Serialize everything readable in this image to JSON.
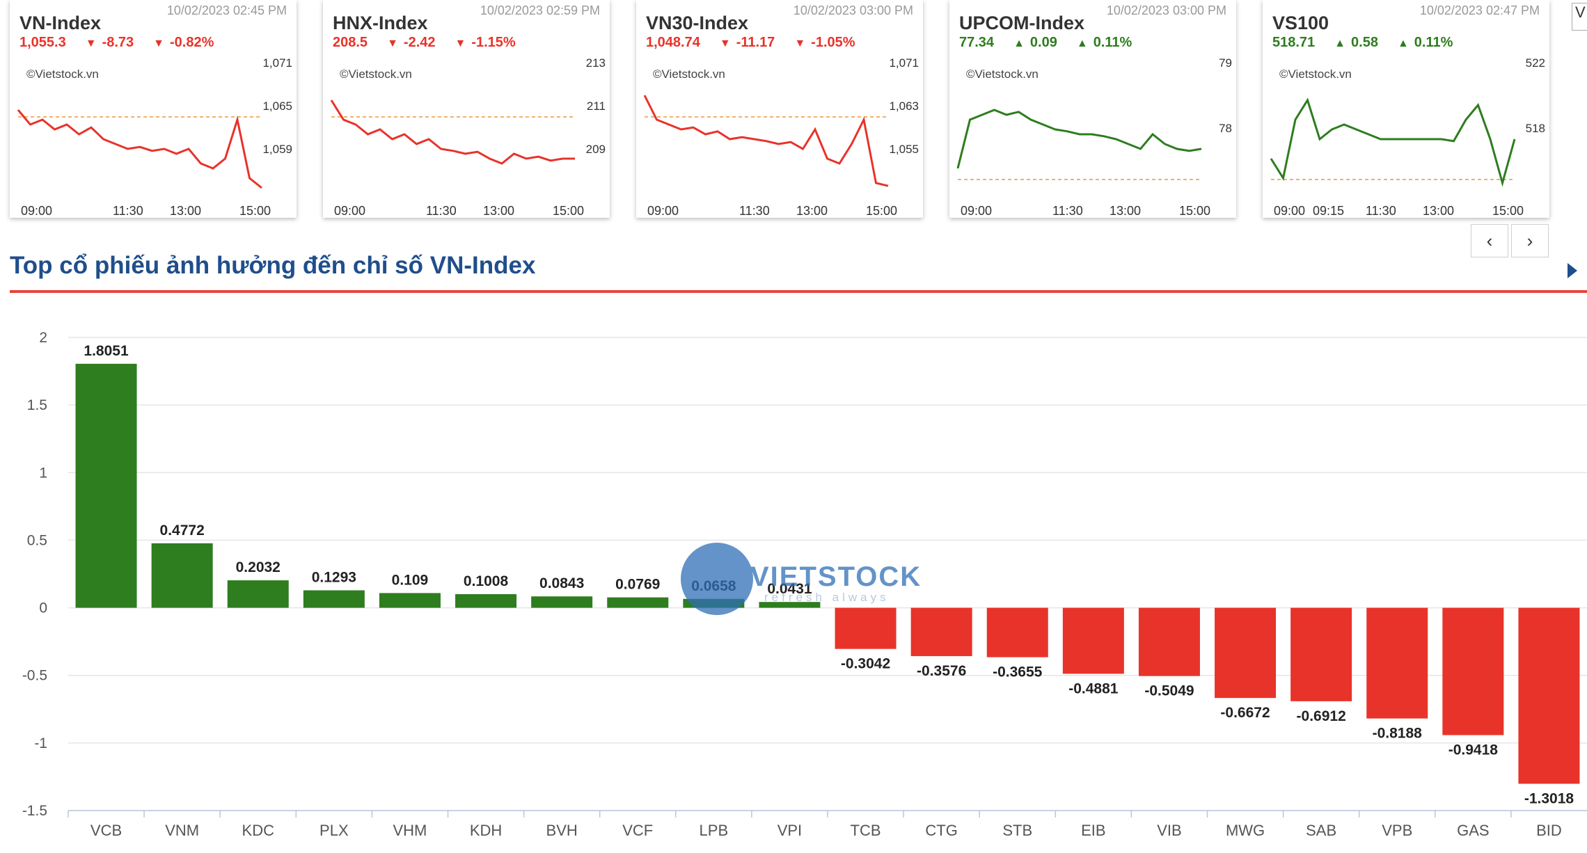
{
  "mini_charts": [
    {
      "name": "VN-Index",
      "time": "10/02/2023 02:45 PM",
      "value": "1,055.3",
      "change": "-8.73",
      "pct": "-0.82%",
      "direction": "down",
      "brand": "©Vietstock.vn",
      "y_ticks": [
        "1,071",
        "1,065",
        "1,059"
      ],
      "x_ticks": [
        "09:00",
        "11:30",
        "13:00",
        "15:00"
      ]
    },
    {
      "name": "HNX-Index",
      "time": "10/02/2023 02:59 PM",
      "value": "208.5",
      "change": "-2.42",
      "pct": "-1.15%",
      "direction": "down",
      "brand": "©Vietstock.vn",
      "y_ticks": [
        "213",
        "211",
        "209"
      ],
      "x_ticks": [
        "09:00",
        "11:30",
        "13:00",
        "15:00"
      ]
    },
    {
      "name": "VN30-Index",
      "time": "10/02/2023 03:00 PM",
      "value": "1,048.74",
      "change": "-11.17",
      "pct": "-1.05%",
      "direction": "down",
      "brand": "©Vietstock.vn",
      "y_ticks": [
        "1,071",
        "1,063",
        "1,055"
      ],
      "x_ticks": [
        "09:00",
        "11:30",
        "13:00",
        "15:00"
      ]
    },
    {
      "name": "UPCOM-Index",
      "time": "10/02/2023 03:00 PM",
      "value": "77.34",
      "change": "0.09",
      "pct": "0.11%",
      "direction": "up",
      "brand": "©Vietstock.vn",
      "y_ticks": [
        "79",
        "78"
      ],
      "x_ticks": [
        "09:00",
        "11:30",
        "13:00",
        "15:00"
      ]
    },
    {
      "name": "VS100",
      "time": "10/02/2023 02:47 PM",
      "value": "518.71",
      "change": "0.58",
      "pct": "0.11%",
      "direction": "up",
      "brand": "©Vietstock.vn",
      "y_ticks": [
        "522",
        "518"
      ],
      "x_ticks": [
        "09:00",
        "09:15",
        "11:30",
        "13:00",
        "15:00"
      ]
    }
  ],
  "nav": {
    "prev": "‹",
    "next": "›"
  },
  "topright_fragment": "V",
  "section_title": "Top cổ phiếu ảnh hưởng đến chỉ số VN-Index",
  "watermark": {
    "text": "VIETSTOCK",
    "sub": "refresh always"
  },
  "colors": {
    "up": "#2e7d1e",
    "down": "#e8332a",
    "title": "#1f4e8c",
    "rule": "#e8443a",
    "grid": "#e6e6e6",
    "axis": "#555555"
  },
  "chart_data": {
    "type": "bar",
    "title": "Top cổ phiếu ảnh hưởng đến chỉ số VN-Index",
    "categories": [
      "VCB",
      "VNM",
      "KDC",
      "PLX",
      "VHM",
      "KDH",
      "BVH",
      "VCF",
      "LPB",
      "VPI",
      "TCB",
      "CTG",
      "STB",
      "EIB",
      "VIB",
      "MWG",
      "SAB",
      "VPB",
      "GAS",
      "BID"
    ],
    "values": [
      1.8051,
      0.4772,
      0.2032,
      0.1293,
      0.109,
      0.1008,
      0.0843,
      0.0769,
      0.0658,
      0.0431,
      -0.3042,
      -0.3576,
      -0.3655,
      -0.4881,
      -0.5049,
      -0.6672,
      -0.6912,
      -0.8188,
      -0.9418,
      -1.3018
    ],
    "labels": [
      "1.8051",
      "0.4772",
      "0.2032",
      "0.1293",
      "0.109",
      "0.1008",
      "0.0843",
      "0.0769",
      "0.0658",
      "0.0431",
      "-0.3042",
      "-0.3576",
      "-0.3655",
      "-0.4881",
      "-0.5049",
      "-0.6672",
      "-0.6912",
      "-0.8188",
      "-0.9418",
      "-1.3018"
    ],
    "ylim": [
      -1.5,
      2
    ],
    "y_ticks": [
      "2",
      "1.5",
      "1",
      "0.5",
      "0",
      "-0.5",
      "-1",
      "-1.5"
    ],
    "xlabel": "",
    "ylabel": "",
    "grid": true,
    "legend": "none"
  }
}
